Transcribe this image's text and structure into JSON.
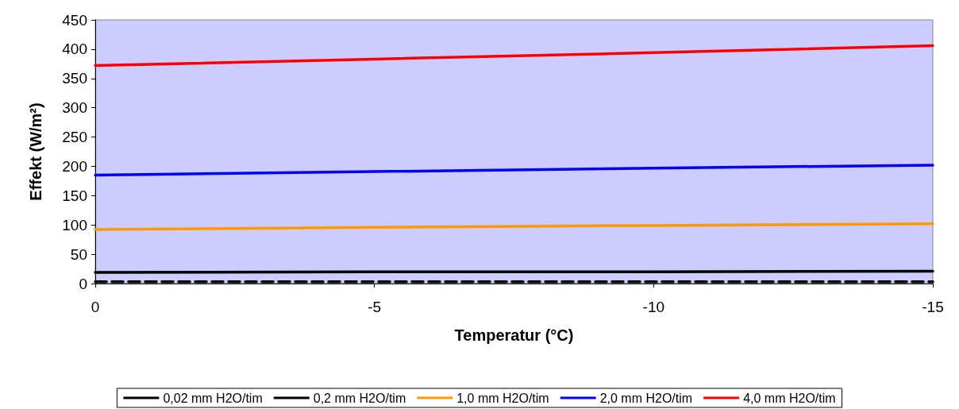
{
  "chart_data": {
    "type": "line",
    "xlabel": "Temperatur (°C)",
    "ylabel": "Effekt (W/m²)",
    "x": [
      0,
      -5,
      -10,
      -15
    ],
    "series": [
      {
        "name": "0,02 mm H2O/tim",
        "color": "#000000",
        "line_style": "dashed",
        "values": [
          3,
          3,
          3,
          3
        ]
      },
      {
        "name": "0,2 mm H2O/tim",
        "color": "#000000",
        "values": [
          19,
          20,
          20,
          21
        ]
      },
      {
        "name": "1,0 mm H2O/tim",
        "color": "#ff9900",
        "values": [
          92,
          96,
          99,
          102
        ]
      },
      {
        "name": "2,0 mm H2O/tim",
        "color": "#0000ff",
        "values": [
          185,
          191,
          197,
          202
        ]
      },
      {
        "name": "4,0 mm H2O/tim",
        "color": "#ff0000",
        "values": [
          372,
          383,
          394,
          406
        ]
      }
    ],
    "xlim": [
      0,
      -15
    ],
    "xticks": [
      0,
      -5,
      -10,
      -15
    ],
    "ylim": [
      0,
      450
    ],
    "yticks": [
      0,
      50,
      100,
      150,
      200,
      250,
      300,
      350,
      400,
      450
    ],
    "grid": false,
    "legend": "bottom",
    "marker": "none",
    "line_style": "solid"
  }
}
